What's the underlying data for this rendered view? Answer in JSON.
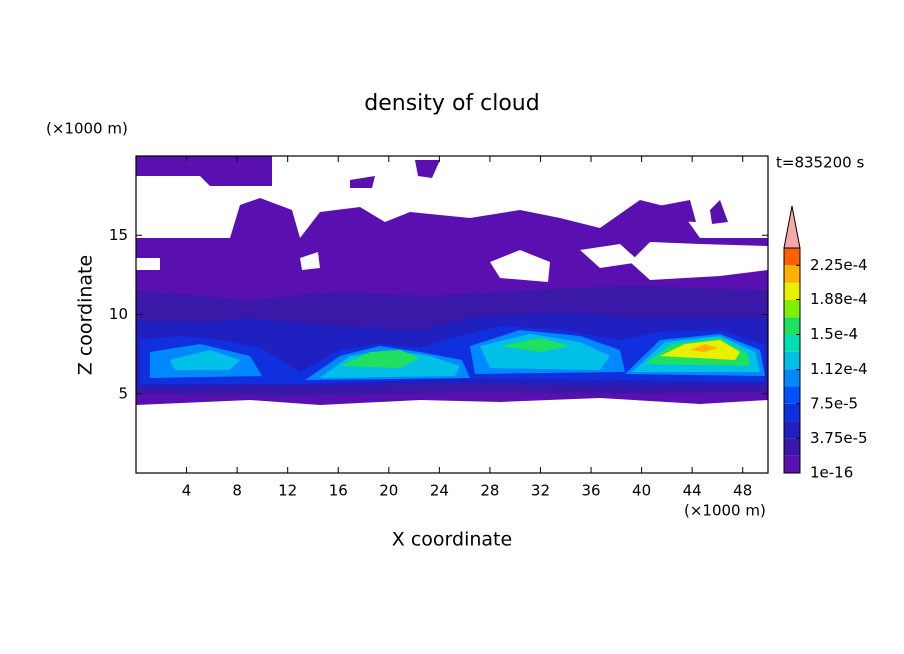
{
  "chart_data": {
    "type": "contour",
    "title": "density of cloud",
    "x_label": "X coordinate",
    "y_label": "Z coordinate",
    "x_unit": "(×1000 m)",
    "y_unit": "(×1000 m)",
    "annotation": "t=835200 s",
    "xlim": [
      0,
      50
    ],
    "ylim": [
      0,
      20
    ],
    "xticks": [
      4,
      8,
      12,
      16,
      20,
      24,
      28,
      32,
      36,
      40,
      44,
      48
    ],
    "yticks": [
      5,
      10,
      15
    ],
    "colorbar": {
      "clim": [
        0,
        0.00024375
      ],
      "colors": [
        "#5a10b0",
        "#3a18a8",
        "#2020c0",
        "#1030e0",
        "#0050ff",
        "#0088ff",
        "#00c0e8",
        "#00e0b0",
        "#20e060",
        "#80f000",
        "#e8f000",
        "#ffb000",
        "#ff6000"
      ],
      "extend_color": "#f4a8a8",
      "ticks": [
        {
          "value": 1e-16,
          "label": "1e-16"
        },
        {
          "value": 3.75e-05,
          "label": "3.75e-5"
        },
        {
          "value": 7.5e-05,
          "label": "7.5e-5"
        },
        {
          "value": 0.000112,
          "label": "1.12e-4"
        },
        {
          "value": 0.00015,
          "label": "1.5e-4"
        },
        {
          "value": 0.000188,
          "label": "1.88e-4"
        },
        {
          "value": 0.000225,
          "label": "2.25e-4"
        }
      ]
    }
  }
}
